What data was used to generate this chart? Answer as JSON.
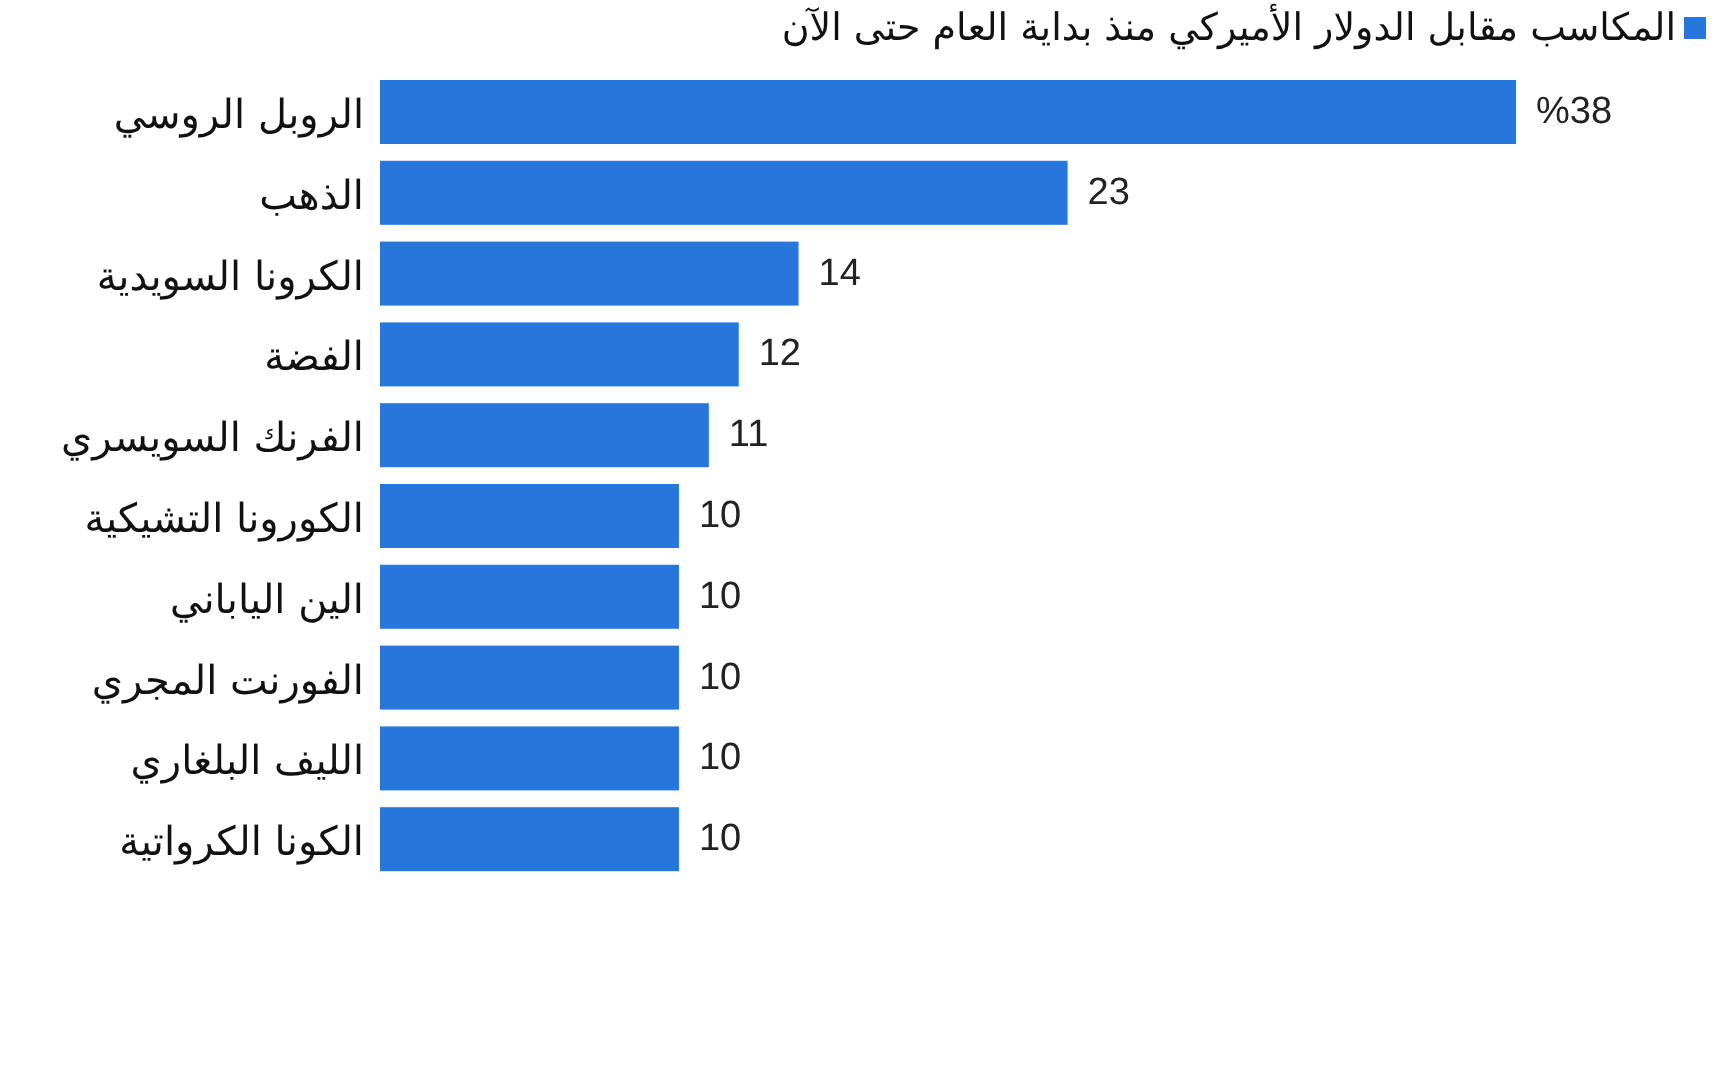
{
  "chart_data": {
    "type": "bar",
    "orientation": "horizontal",
    "categories": [
      "الروبل الروسي",
      "الذهب",
      "الكرونا السويدية",
      "الفضة",
      "الفرنك السويسري",
      "الكورونا التشيكية",
      "الين الياباني",
      "الفورنت المجري",
      "الليف البلغاري",
      "الكونا الكرواتية"
    ],
    "series": [
      {
        "name": "المكاسب مقابل الدولار الأميركي منذ بداية العام حتى الآن",
        "color": "#2776dc",
        "values": [
          38,
          23,
          14,
          12,
          11,
          10,
          10,
          10,
          10,
          10
        ],
        "value_labels": [
          "%38",
          "23",
          "14",
          "12",
          "11",
          "10",
          "10",
          "10",
          "10",
          "10"
        ]
      }
    ],
    "xlim": [
      0,
      38
    ],
    "tick_labels": "y",
    "legend": "top right"
  }
}
